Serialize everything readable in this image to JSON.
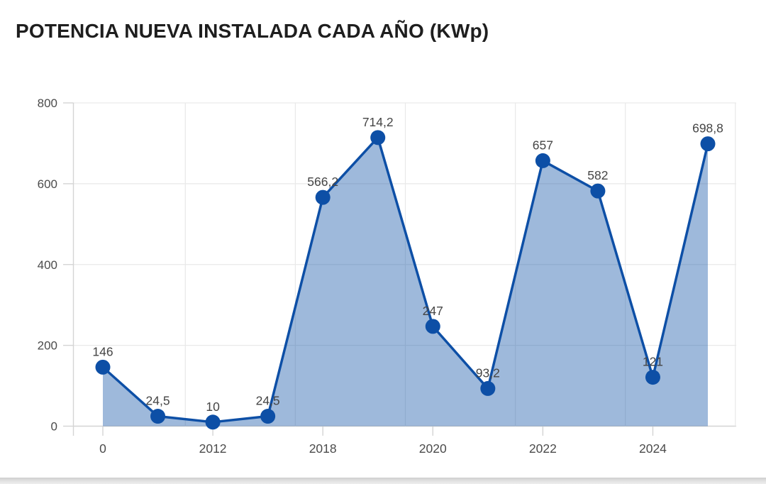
{
  "title": "POTENCIA NUEVA INSTALADA CADA AÑO (KWp)",
  "colors": {
    "line": "#0d4fa6",
    "marker": "#0d4fa6",
    "area_fill": "#0d4fa6",
    "area_opacity": "0.4",
    "grid": "#e9e9e9",
    "axis": "#d4d4d4",
    "tick_label": "#4b4b4b",
    "value_label": "#454545",
    "title_text": "#1e1e1e",
    "bottom_bar": "#dcdcdc"
  },
  "chart_data": {
    "type": "area",
    "title": "POTENCIA NUEVA INSTALADA CADA AÑO (KWp)",
    "ylabel": "",
    "xlabel": "",
    "values": [
      146,
      24.5,
      10,
      24.5,
      566.2,
      714.2,
      247,
      93.2,
      657,
      582,
      121,
      698.8
    ],
    "point_labels": [
      "146",
      "24,5",
      "10",
      "24,5",
      "566,2",
      "714,2",
      "247",
      "93,2",
      "657",
      "582",
      "121",
      "698,8"
    ],
    "x_ticks": [
      {
        "point": 0,
        "label": "0"
      },
      {
        "point": 2,
        "label": "2012"
      },
      {
        "point": 4,
        "label": "2018"
      },
      {
        "point": 6,
        "label": "2020"
      },
      {
        "point": 8,
        "label": "2022"
      },
      {
        "point": 10,
        "label": "2024"
      }
    ],
    "y_ticks": [
      {
        "value": 0,
        "label": "0"
      },
      {
        "value": 200,
        "label": "200"
      },
      {
        "value": 400,
        "label": "400"
      },
      {
        "value": 600,
        "label": "600"
      },
      {
        "value": 800,
        "label": "800"
      }
    ],
    "ylim": [
      0,
      800
    ],
    "grid": true,
    "legend": "none"
  }
}
